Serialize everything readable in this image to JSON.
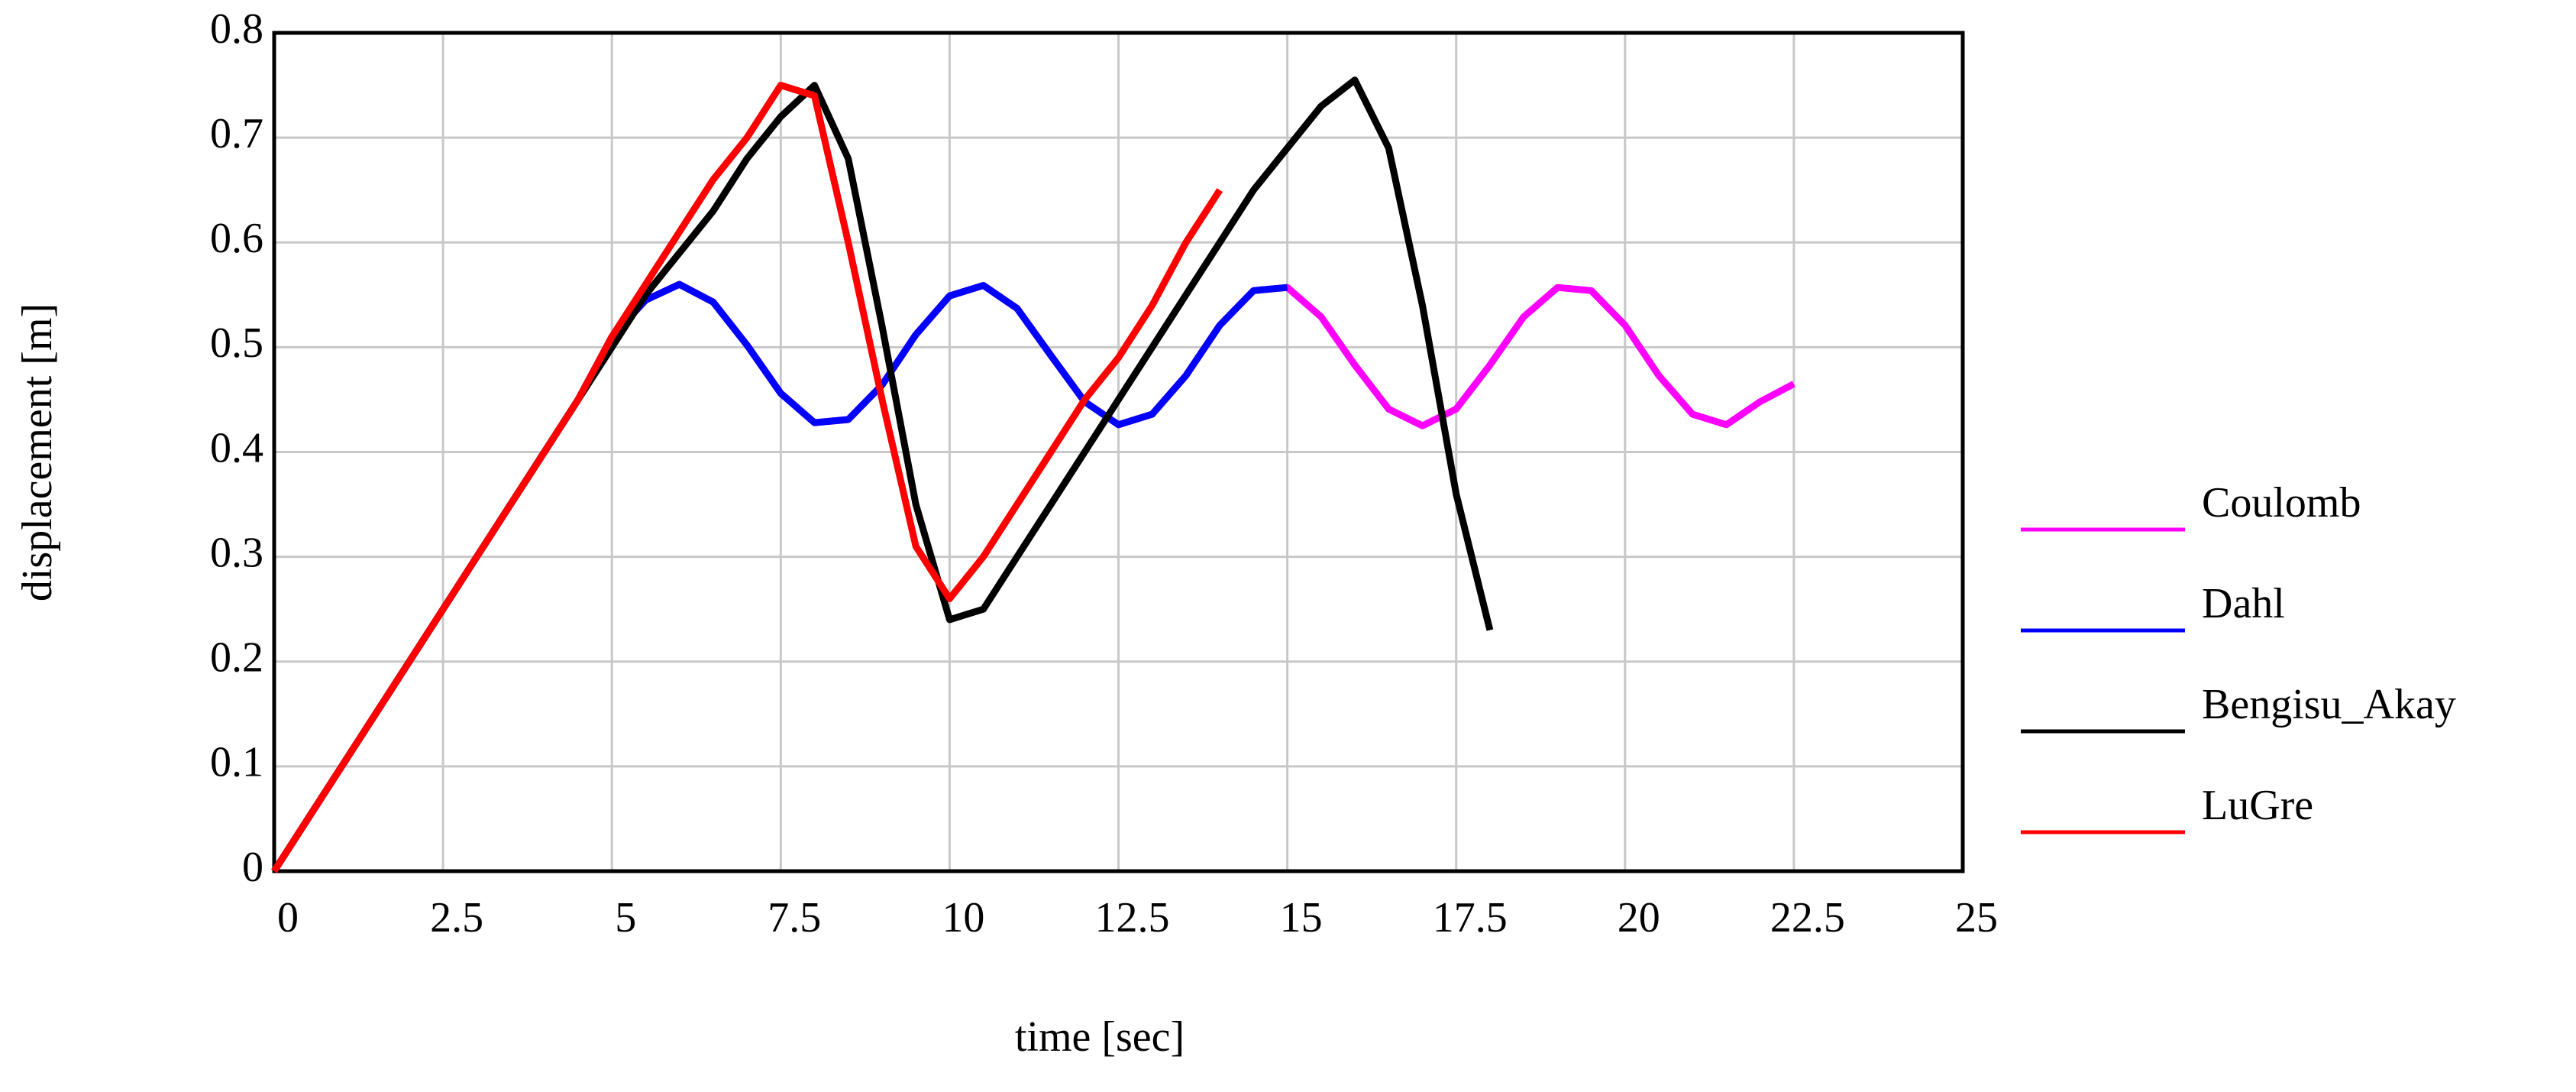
{
  "chart_data": {
    "type": "line",
    "xlabel": "time [sec]",
    "ylabel": "displacement [m]",
    "x": [
      0,
      0.5,
      1,
      1.5,
      2,
      2.5,
      3,
      3.5,
      4,
      4.5,
      5,
      5.5,
      6,
      6.5,
      7,
      7.5,
      8,
      8.5,
      9,
      9.5,
      10,
      10.5,
      11,
      11.5,
      12,
      12.5,
      13,
      13.5,
      14,
      14.5,
      15,
      15.5,
      16,
      16.5,
      17,
      17.5,
      18,
      18.5,
      19,
      19.5,
      20,
      20.5,
      21,
      21.5,
      22,
      22.5
    ],
    "series": [
      {
        "name": "Coulomb",
        "color": "#ff00ff",
        "values": [
          0,
          0.05,
          0.1,
          0.15,
          0.2,
          0.25,
          0.3,
          0.35,
          0.4,
          0.45,
          0.51,
          0.545,
          0.56,
          0.543,
          0.502,
          0.456,
          0.428,
          0.431,
          0.464,
          0.512,
          0.549,
          0.559,
          0.537,
          0.492,
          0.448,
          0.426,
          0.436,
          0.473,
          0.521,
          0.554,
          0.557,
          0.529,
          0.483,
          0.441,
          0.425,
          0.441,
          0.483,
          0.529,
          0.557,
          0.554,
          0.521,
          0.473,
          0.436,
          0.426,
          0.448,
          0.465
        ]
      },
      {
        "name": "Dahl",
        "color": "#0000ff",
        "values": [
          0,
          0.05,
          0.1,
          0.15,
          0.2,
          0.25,
          0.3,
          0.35,
          0.4,
          0.45,
          0.51,
          0.545,
          0.56,
          0.543,
          0.502,
          0.456,
          0.428,
          0.431,
          0.464,
          0.512,
          0.549,
          0.559,
          0.537,
          0.492,
          0.448,
          0.426,
          0.436,
          0.473,
          0.521,
          0.554,
          0.557,
          null,
          null,
          null,
          null,
          null,
          null,
          null,
          null,
          null,
          null,
          null,
          null,
          null,
          null,
          null
        ]
      },
      {
        "name": "Bengisu_Akay",
        "color": "#000000",
        "values": [
          0,
          0.05,
          0.1,
          0.15,
          0.2,
          0.25,
          0.3,
          0.35,
          0.4,
          0.45,
          0.5,
          0.55,
          0.59,
          0.63,
          0.68,
          0.72,
          0.75,
          0.68,
          0.52,
          0.35,
          0.24,
          0.25,
          0.3,
          0.35,
          0.4,
          0.45,
          0.5,
          0.55,
          0.6,
          0.65,
          0.69,
          0.73,
          0.755,
          0.69,
          0.54,
          0.36,
          0.23,
          null,
          null,
          null,
          null,
          null,
          null,
          null,
          null,
          null
        ]
      },
      {
        "name": "LuGre",
        "color": "#ff0000",
        "values": [
          0,
          0.05,
          0.1,
          0.15,
          0.2,
          0.25,
          0.3,
          0.35,
          0.4,
          0.45,
          0.51,
          0.56,
          0.61,
          0.66,
          0.7,
          0.75,
          0.74,
          0.6,
          0.45,
          0.31,
          0.26,
          0.3,
          0.35,
          0.4,
          0.45,
          0.49,
          0.54,
          0.6,
          0.65,
          null,
          null,
          null,
          null,
          null,
          null,
          null,
          null,
          null,
          null,
          null,
          null,
          null,
          null,
          null,
          null,
          null
        ]
      }
    ],
    "xlim": [
      0,
      25
    ],
    "xticks": [
      0,
      2.5,
      5,
      7.5,
      10,
      12.5,
      15,
      17.5,
      20,
      22.5,
      25
    ],
    "ylim": [
      0,
      0.8
    ],
    "yticks": [
      0,
      0.1,
      0.2,
      0.3,
      0.4,
      0.5,
      0.6,
      0.7,
      0.8
    ],
    "grid": true,
    "legend_position": "right"
  }
}
